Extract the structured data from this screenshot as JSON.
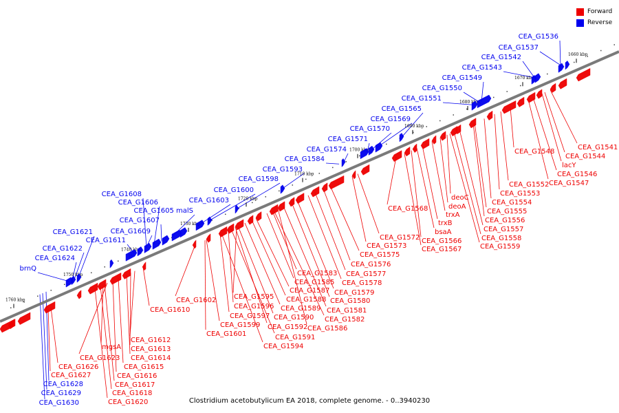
{
  "colors": {
    "forward": "#ee0000",
    "reverse": "#0000ee",
    "axis": "#7a7a7a"
  },
  "legend": {
    "forward": "Forward",
    "reverse": "Reverse"
  },
  "caption": "Clostridium acetobutylicum EA 2018, complete genome. - 0..3940230",
  "ticks": [
    "1660 kbp",
    "1670 kbp",
    "1680 kbp",
    "1690 kbp",
    "1700 kbp",
    "1710 kbp",
    "1720 kbp",
    "1730 kbp",
    "1740 kbp",
    "1750 kbp",
    "1760 kbp"
  ],
  "reverse_labels": [
    "CEA_G1536",
    "CEA_G1537",
    "CEA_G1542",
    "CEA_G1543",
    "CEA_G1549",
    "CEA_G1550",
    "CEA_G1551",
    "CEA_G1565",
    "CEA_G1569",
    "CEA_G1570",
    "CEA_G1571",
    "CEA_G1574",
    "CEA_G1584",
    "CEA_G1593",
    "CEA_G1598",
    "CEA_G1600",
    "CEA_G1603",
    "CEA_G1608",
    "CEA_G1606",
    "CEA_G1605 malS",
    "CEA_G1607",
    "CEA_G1609",
    "CEA_G1621",
    "CEA_G1611",
    "CEA_G1622",
    "CEA_G1624",
    "brnQ",
    "CEA_G1628",
    "CEA_G1629",
    "CEA_G1630"
  ],
  "forward_labels": [
    "CEA_G1541",
    "CEA_G1544",
    "lacY",
    "CEA_G1546",
    "CEA_G1547",
    "CEA_G1548",
    "CEA_G1552",
    "CEA_G1553",
    "CEA_G1554",
    "CEA_G1555",
    "CEA_G1556",
    "CEA_G1557",
    "CEA_G1558",
    "CEA_G1559",
    "deoC",
    "deoA",
    "trxA",
    "trxB",
    "bsaA",
    "CEA_G1566",
    "CEA_G1567",
    "CEA_G1568",
    "CEA_G1572",
    "CEA_G1573",
    "CEA_G1575",
    "CEA_G1576",
    "CEA_G1577",
    "CEA_G1578",
    "CEA_G1579",
    "CEA_G1580",
    "CEA_G1581",
    "CEA_G1582",
    "CEA_G1583",
    "CEA_G1585",
    "CEA_G1587",
    "CEA_G1588",
    "CEA_G1589",
    "CEA_G1590",
    "CEA_G1586",
    "CEA_G1595",
    "CEA_G1596",
    "CEA_G1597",
    "CEA_G1592",
    "CEA_G1599",
    "CEA_G1591",
    "CEA_G1601",
    "CEA_G1594",
    "CEA_G1602",
    "CEA_G1610",
    "CEA_G1612",
    "CEA_G1613",
    "CEA_G1614",
    "mgsA",
    "CEA_G1623",
    "CEA_G1615",
    "CEA_G1616",
    "CEA_G1626",
    "CEA_G1627",
    "CEA_G1617",
    "CEA_G1618",
    "CEA_G1620"
  ]
}
